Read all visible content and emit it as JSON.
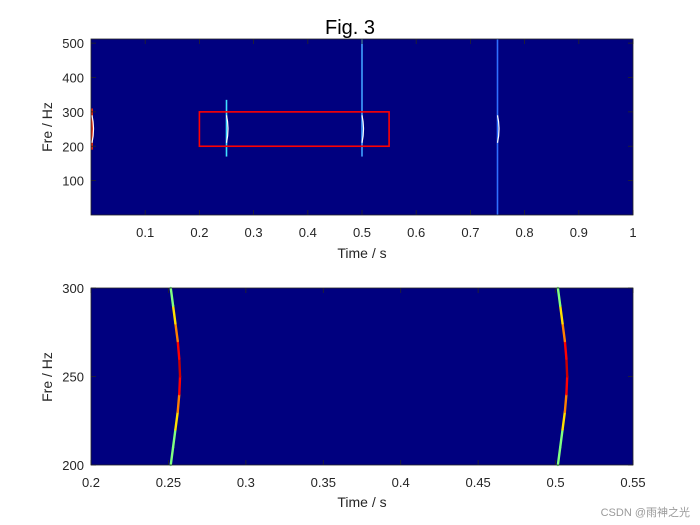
{
  "figure": {
    "title": "Fig. 3",
    "watermark": "CSDN @雨神之光",
    "background_color": "#00007F",
    "highlight_box_color": "#FF0000"
  },
  "chart_data": [
    {
      "type": "heatmap",
      "title": "Fig. 3",
      "xlabel": "Time / s",
      "ylabel": "Fre / Hz",
      "xlim": [
        0,
        1
      ],
      "ylim": [
        0,
        512
      ],
      "xticks": [
        0.1,
        0.2,
        0.3,
        0.4,
        0.5,
        0.6,
        0.7,
        0.8,
        0.9,
        1
      ],
      "xtick_labels": [
        "0.1",
        "0.2",
        "0.3",
        "0.4",
        "0.5",
        "0.6",
        "0.7",
        "0.8",
        "0.9",
        "1"
      ],
      "yticks": [
        100,
        200,
        300,
        400,
        500
      ],
      "ytick_labels": [
        "100",
        "200",
        "300",
        "400",
        "500"
      ],
      "colormap": "jet",
      "lines": [
        {
          "x": 0.0,
          "y_range": [
            190,
            310
          ],
          "color": "#FF3000"
        },
        {
          "x": 0.25,
          "y_range": [
            170,
            335
          ],
          "color": "#40E0FF"
        },
        {
          "x": 0.5,
          "y_range": [
            170,
            512
          ],
          "color": "#40A0FF"
        },
        {
          "x": 0.75,
          "y_range": [
            0,
            512
          ],
          "color": "#3070FF"
        }
      ],
      "highlight_region": {
        "x": [
          0.2,
          0.55
        ],
        "y": [
          200,
          300
        ]
      }
    },
    {
      "type": "heatmap",
      "title": "",
      "xlabel": "Time / s",
      "ylabel": "Fre / Hz",
      "xlim": [
        0.2,
        0.55
      ],
      "ylim": [
        200,
        300
      ],
      "xticks": [
        0.2,
        0.25,
        0.3,
        0.35,
        0.4,
        0.45,
        0.5,
        0.55
      ],
      "xtick_labels": [
        "0.2",
        "0.25",
        "0.3",
        "0.35",
        "0.4",
        "0.45",
        "0.5",
        "0.55"
      ],
      "yticks": [
        200,
        250,
        300
      ],
      "ytick_labels": [
        "200",
        "250",
        "300"
      ],
      "colormap": "jet",
      "curves": [
        {
          "name": "",
          "points": [
            {
              "t": 0.2515,
              "f": 200,
              "color": "#80FF80"
            },
            {
              "t": 0.253,
              "f": 210,
              "color": "#80FF80"
            },
            {
              "t": 0.2545,
              "f": 220,
              "color": "#FFE000"
            },
            {
              "t": 0.256,
              "f": 230,
              "color": "#FF8000"
            },
            {
              "t": 0.257,
              "f": 240,
              "color": "#FF0000"
            },
            {
              "t": 0.2575,
              "f": 250,
              "color": "#CC0000"
            },
            {
              "t": 0.257,
              "f": 260,
              "color": "#FF0000"
            },
            {
              "t": 0.256,
              "f": 270,
              "color": "#FF8000"
            },
            {
              "t": 0.2545,
              "f": 280,
              "color": "#FFE000"
            },
            {
              "t": 0.253,
              "f": 290,
              "color": "#80FF80"
            },
            {
              "t": 0.2515,
              "f": 300,
              "color": "#80FF80"
            }
          ]
        },
        {
          "name": "",
          "points": [
            {
              "t": 0.5015,
              "f": 200,
              "color": "#80FF80"
            },
            {
              "t": 0.503,
              "f": 210,
              "color": "#80FF80"
            },
            {
              "t": 0.5045,
              "f": 220,
              "color": "#FFE000"
            },
            {
              "t": 0.506,
              "f": 230,
              "color": "#FF8000"
            },
            {
              "t": 0.507,
              "f": 240,
              "color": "#FF0000"
            },
            {
              "t": 0.5075,
              "f": 250,
              "color": "#CC0000"
            },
            {
              "t": 0.507,
              "f": 260,
              "color": "#FF0000"
            },
            {
              "t": 0.506,
              "f": 270,
              "color": "#FF8000"
            },
            {
              "t": 0.5045,
              "f": 280,
              "color": "#FFE000"
            },
            {
              "t": 0.503,
              "f": 290,
              "color": "#80FF80"
            },
            {
              "t": 0.5015,
              "f": 300,
              "color": "#80FF80"
            }
          ]
        }
      ]
    }
  ]
}
